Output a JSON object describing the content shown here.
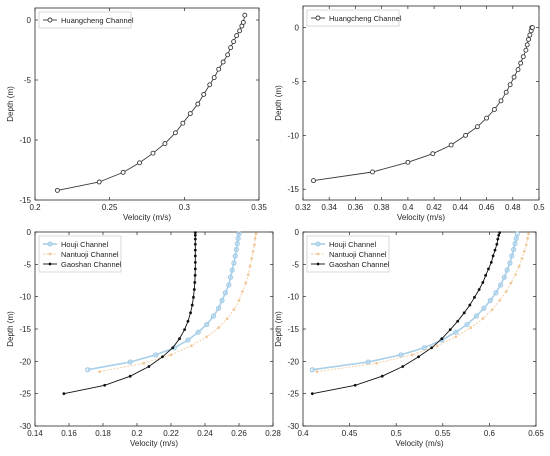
{
  "colors": {
    "axis": "#262626",
    "huangcheng": "#3a3a3a",
    "houji": "#a8cfe9",
    "nantuoji": "#f3c99a",
    "gaoshan": "#111111",
    "legend_border": "#c8c8c8"
  },
  "chart_data": [
    {
      "type": "line",
      "xlabel": "Velocity (m/s)",
      "ylabel": "Depth (m)",
      "xlim": [
        0.2,
        0.35
      ],
      "ylim": [
        -15,
        1
      ],
      "xticks": [
        0.2,
        0.25,
        0.3,
        0.35
      ],
      "xtick_labels": [
        "0.2",
        "0.25",
        "0.3",
        "0.35"
      ],
      "yticks": [
        -15,
        -10,
        -5,
        0
      ],
      "ytick_labels": [
        "-15",
        "-10",
        "-5",
        "0"
      ],
      "legend_placement": "top-left",
      "series": [
        {
          "name": "Huangcheng Channel",
          "marker": "circle-open",
          "color": "huangcheng",
          "x": [
            0.215,
            0.243,
            0.259,
            0.27,
            0.279,
            0.287,
            0.294,
            0.299,
            0.304,
            0.309,
            0.313,
            0.317,
            0.32,
            0.323,
            0.326,
            0.329,
            0.331,
            0.333,
            0.335,
            0.337,
            0.3385,
            0.3395,
            0.3405
          ],
          "y": [
            -14.2,
            -13.5,
            -12.7,
            -11.9,
            -11.1,
            -10.3,
            -9.4,
            -8.6,
            -7.8,
            -7.0,
            -6.2,
            -5.4,
            -4.8,
            -4.1,
            -3.5,
            -2.9,
            -2.3,
            -1.8,
            -1.3,
            -0.9,
            -0.5,
            -0.2,
            0.4
          ]
        }
      ]
    },
    {
      "type": "line",
      "xlabel": "Velocity (m/s)",
      "ylabel": "Depth (m)",
      "xlim": [
        0.32,
        0.5
      ],
      "ylim": [
        -16,
        2
      ],
      "xticks": [
        0.32,
        0.34,
        0.36,
        0.38,
        0.4,
        0.42,
        0.44,
        0.46,
        0.48,
        0.5
      ],
      "xtick_labels": [
        "0.32",
        "0.34",
        "0.36",
        "0.38",
        "0.4",
        "0.42",
        "0.44",
        "0.46",
        "0.48",
        "0.5"
      ],
      "yticks": [
        -15,
        -10,
        -5,
        0
      ],
      "ytick_labels": [
        "-15",
        "-10",
        "-5",
        "0"
      ],
      "legend_placement": "top-left",
      "series": [
        {
          "name": "Huangcheng Channel",
          "marker": "circle-open",
          "color": "huangcheng",
          "x": [
            0.328,
            0.373,
            0.4,
            0.419,
            0.433,
            0.444,
            0.453,
            0.46,
            0.466,
            0.471,
            0.475,
            0.478,
            0.481,
            0.484,
            0.486,
            0.488,
            0.49,
            0.491,
            0.492,
            0.493,
            0.494,
            0.4945,
            0.495
          ],
          "y": [
            -14.2,
            -13.4,
            -12.5,
            -11.7,
            -10.9,
            -10.0,
            -9.2,
            -8.4,
            -7.6,
            -6.8,
            -6.0,
            -5.3,
            -4.6,
            -3.9,
            -3.3,
            -2.7,
            -2.1,
            -1.6,
            -1.1,
            -0.7,
            -0.3,
            0.0,
            0.0
          ]
        }
      ]
    },
    {
      "type": "line",
      "xlabel": "Velocity (m/s)",
      "ylabel": "Depth (m)",
      "xlim": [
        0.14,
        0.28
      ],
      "ylim": [
        -30,
        0
      ],
      "xticks": [
        0.14,
        0.16,
        0.18,
        0.2,
        0.22,
        0.24,
        0.26,
        0.28
      ],
      "xtick_labels": [
        "0.14",
        "0.16",
        "0.18",
        "0.2",
        "0.22",
        "0.24",
        "0.26",
        "0.28"
      ],
      "yticks": [
        -30,
        -25,
        -20,
        -15,
        -10,
        -5,
        0
      ],
      "ytick_labels": [
        "-30",
        "-25",
        "-20",
        "-15",
        "-10",
        "-5",
        "0"
      ],
      "legend_placement": "top-left",
      "series": [
        {
          "name": "Houji Channel",
          "marker": "circle",
          "color": "houji",
          "x": [
            0.171,
            0.196,
            0.211,
            0.222,
            0.23,
            0.236,
            0.241,
            0.245,
            0.248,
            0.25,
            0.252,
            0.254,
            0.255,
            0.256,
            0.257,
            0.2578,
            0.2585,
            0.259,
            0.2595,
            0.26
          ],
          "y": [
            -21.3,
            -20.1,
            -19.0,
            -17.9,
            -16.7,
            -15.5,
            -14.3,
            -13.0,
            -11.8,
            -10.6,
            -9.4,
            -8.2,
            -7.0,
            -5.9,
            -4.8,
            -3.7,
            -2.7,
            -1.8,
            -1.0,
            -0.3
          ]
        },
        {
          "name": "Nantuoji Channel",
          "marker": "dot",
          "color": "nantuoji",
          "x": [
            0.178,
            0.204,
            0.22,
            0.232,
            0.241,
            0.248,
            0.253,
            0.257,
            0.26,
            0.262,
            0.264,
            0.2655,
            0.2665,
            0.2675,
            0.2683,
            0.269,
            0.2695,
            0.27
          ],
          "y": [
            -21.6,
            -20.3,
            -19.0,
            -17.6,
            -16.2,
            -14.8,
            -13.4,
            -12.0,
            -10.6,
            -9.2,
            -7.9,
            -6.6,
            -5.3,
            -4.1,
            -3.0,
            -2.0,
            -1.0,
            -0.3
          ]
        },
        {
          "name": "Gaoshan Channel",
          "marker": "dot",
          "color": "gaoshan",
          "x": [
            0.157,
            0.181,
            0.196,
            0.207,
            0.215,
            0.221,
            0.225,
            0.228,
            0.23,
            0.2315,
            0.2325,
            0.2332,
            0.2337,
            0.234,
            0.2342,
            0.2343,
            0.2343,
            0.2343,
            0.2343,
            0.2343,
            0.2343,
            0.2343,
            0.2343
          ],
          "y": [
            -25.0,
            -23.7,
            -22.3,
            -20.8,
            -19.3,
            -17.9,
            -16.5,
            -15.1,
            -13.8,
            -12.5,
            -11.3,
            -10.1,
            -8.9,
            -7.8,
            -6.7,
            -5.7,
            -4.7,
            -3.7,
            -2.8,
            -1.9,
            -1.1,
            -0.5,
            -0.1
          ]
        }
      ]
    },
    {
      "type": "line",
      "xlabel": "Velocity (m/s)",
      "ylabel": "Depth (m)",
      "xlim": [
        0.4,
        0.65
      ],
      "ylim": [
        -30,
        0
      ],
      "xticks": [
        0.4,
        0.45,
        0.5,
        0.55,
        0.6,
        0.65
      ],
      "xtick_labels": [
        "0.4",
        "0.45",
        "0.5",
        "0.55",
        "0.6",
        "0.65"
      ],
      "yticks": [
        -30,
        -25,
        -20,
        -15,
        -10,
        -5,
        0
      ],
      "ytick_labels": [
        "-30",
        "-25",
        "-20",
        "-15",
        "-10",
        "-5",
        "0"
      ],
      "legend_placement": "top-left",
      "series": [
        {
          "name": "Houji Channel",
          "marker": "circle",
          "color": "houji",
          "x": [
            0.41,
            0.47,
            0.505,
            0.53,
            0.549,
            0.564,
            0.576,
            0.586,
            0.594,
            0.601,
            0.607,
            0.612,
            0.616,
            0.619,
            0.622,
            0.624,
            0.626,
            0.6275,
            0.6288,
            0.63
          ],
          "y": [
            -21.3,
            -20.1,
            -19.0,
            -17.9,
            -16.7,
            -15.5,
            -14.3,
            -13.0,
            -11.8,
            -10.6,
            -9.4,
            -8.2,
            -7.0,
            -5.9,
            -4.8,
            -3.7,
            -2.7,
            -1.8,
            -1.0,
            -0.3
          ]
        },
        {
          "name": "Nantuoji Channel",
          "marker": "dot",
          "color": "nantuoji",
          "x": [
            0.415,
            0.479,
            0.517,
            0.544,
            0.564,
            0.58,
            0.593,
            0.603,
            0.611,
            0.618,
            0.623,
            0.628,
            0.632,
            0.635,
            0.6375,
            0.6395,
            0.641,
            0.642
          ],
          "y": [
            -21.6,
            -20.3,
            -19.0,
            -17.6,
            -16.2,
            -14.8,
            -13.4,
            -12.0,
            -10.6,
            -9.2,
            -7.9,
            -6.6,
            -5.3,
            -4.1,
            -3.0,
            -2.0,
            -1.0,
            -0.3
          ]
        },
        {
          "name": "Gaoshan Channel",
          "marker": "dot",
          "color": "gaoshan",
          "x": [
            0.41,
            0.456,
            0.485,
            0.507,
            0.524,
            0.538,
            0.549,
            0.558,
            0.566,
            0.573,
            0.579,
            0.584,
            0.589,
            0.593,
            0.596,
            0.599,
            0.602,
            0.604,
            0.606,
            0.608,
            0.609,
            0.61,
            0.611
          ],
          "y": [
            -25.0,
            -23.7,
            -22.3,
            -20.8,
            -19.3,
            -17.9,
            -16.5,
            -15.1,
            -13.8,
            -12.5,
            -11.3,
            -10.1,
            -8.9,
            -7.8,
            -6.7,
            -5.7,
            -4.7,
            -3.7,
            -2.8,
            -1.9,
            -1.1,
            -0.5,
            -0.1
          ]
        }
      ]
    }
  ]
}
